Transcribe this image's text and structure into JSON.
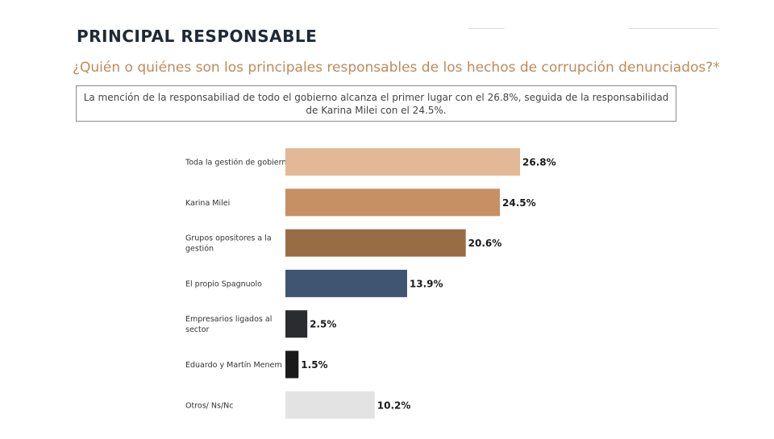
{
  "title": "PRINCIPAL RESPONSABLE",
  "question": "¿Quién o quiénes son los principales responsables de los hechos de corrupción denunciados?*",
  "summary": "La mención de la responsabiliad de todo el gobierno alcanza el primer lugar con el 26.8%, seguida de la responsabilidad de Karina Milei con el 24.5%.",
  "chart_data": {
    "type": "bar",
    "orientation": "horizontal",
    "title": "¿Quién o quiénes son los principales responsables de los hechos de corrupción denunciados?*",
    "xlabel": "",
    "ylabel": "",
    "value_suffix": "%",
    "categories": [
      [
        "Toda la gestión de gobierno"
      ],
      [
        "Karina Milei"
      ],
      [
        "Grupos opositores a la",
        "gestión"
      ],
      [
        "El propio Spagnuolo"
      ],
      [
        "Empresarios ligados al",
        "sector"
      ],
      [
        "Eduardo y Martín Menem"
      ],
      [
        "Otros/ Ns/Nc"
      ]
    ],
    "values": [
      26.8,
      24.5,
      20.6,
      13.9,
      2.5,
      1.5,
      10.2
    ],
    "value_labels": [
      "26.8%",
      "24.5%",
      "20.6%",
      "13.9%",
      "2.5%",
      "1.5%",
      "10.2%"
    ],
    "colors": [
      "#e3b896",
      "#c68f64",
      "#986c44",
      "#3f5572",
      "#2b2c2f",
      "#1a1a1a",
      "#e3e3e3"
    ],
    "xlim": [
      0,
      26.8
    ],
    "grid": false,
    "legend": "none"
  }
}
